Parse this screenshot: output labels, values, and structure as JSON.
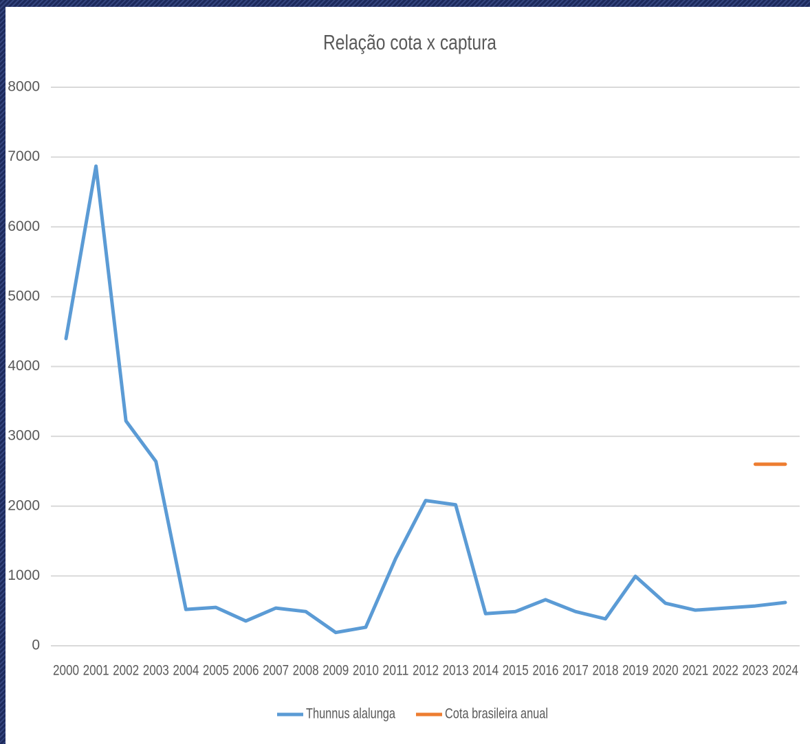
{
  "chart_data": {
    "type": "line",
    "title": "Relação cota x captura",
    "categories": [
      "2000",
      "2001",
      "2002",
      "2003",
      "2004",
      "2005",
      "2006",
      "2007",
      "2008",
      "2009",
      "2010",
      "2011",
      "2012",
      "2013",
      "2014",
      "2015",
      "2016",
      "2017",
      "2018",
      "2019",
      "2020",
      "2021",
      "2022",
      "2023",
      "2024"
    ],
    "series": [
      {
        "name": "Thunnus alalunga",
        "color": "#5b9bd5",
        "values": [
          4400,
          6870,
          3220,
          2640,
          520,
          550,
          355,
          540,
          490,
          190,
          265,
          1250,
          2080,
          2020,
          460,
          490,
          660,
          490,
          385,
          995,
          610,
          510,
          540,
          570,
          620
        ]
      },
      {
        "name": "Cota brasileira anual",
        "color": "#ed7d31",
        "values": [
          null,
          null,
          null,
          null,
          null,
          null,
          null,
          null,
          null,
          null,
          null,
          null,
          null,
          null,
          null,
          null,
          null,
          null,
          null,
          null,
          null,
          null,
          null,
          2600,
          2600
        ]
      }
    ],
    "ylim": [
      0,
      8000
    ],
    "yticks": [
      0,
      1000,
      2000,
      3000,
      4000,
      5000,
      6000,
      7000,
      8000
    ],
    "grid": true,
    "legend": "bottom"
  }
}
